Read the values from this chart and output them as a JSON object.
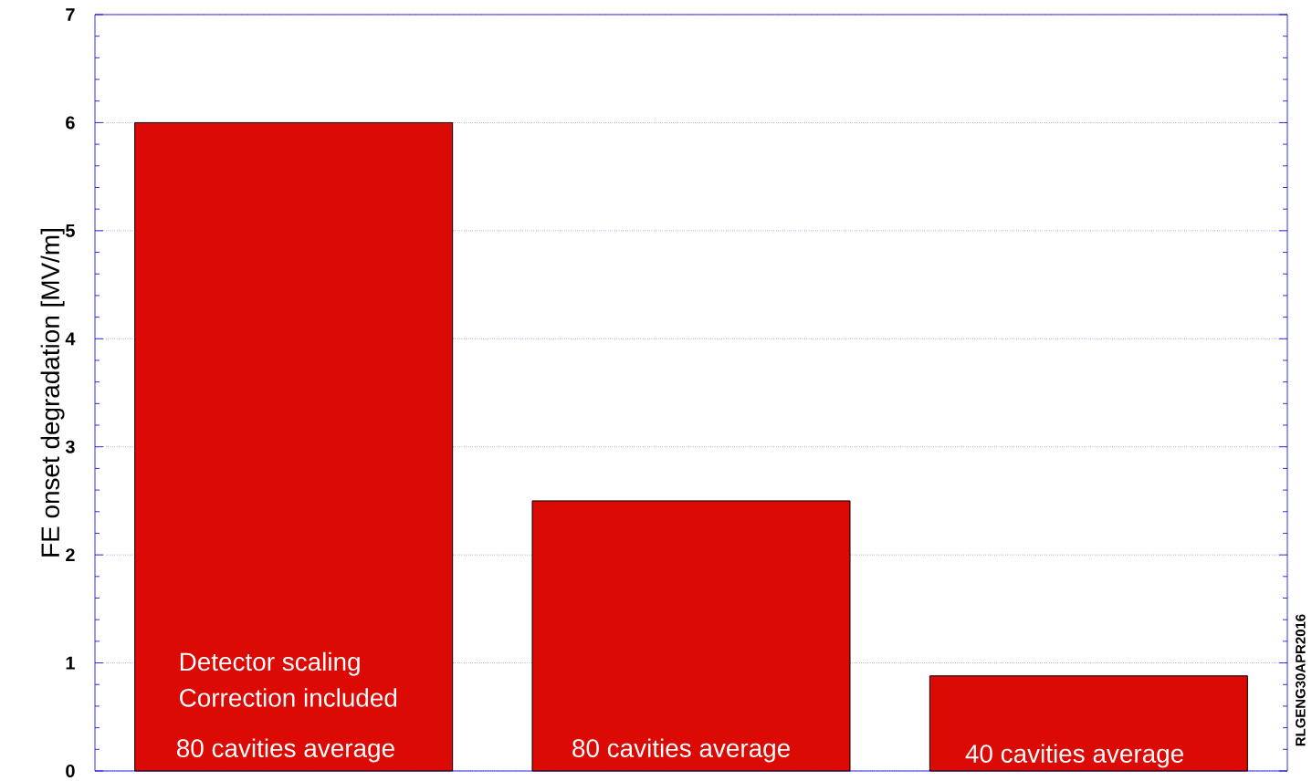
{
  "chart_data": {
    "type": "bar",
    "ylabel": "FE onset degradation [MV/m]",
    "categories": [
      null,
      null,
      null
    ],
    "values": [
      6,
      2.5,
      0.88
    ],
    "color": "#dc0a05",
    "ylim": [
      0,
      7
    ],
    "yticks": [
      0,
      1,
      2,
      3,
      4,
      5,
      6,
      7
    ],
    "grid": "y",
    "annotations": [
      "Detector scaling",
      "Correction included",
      "80 cavities average",
      "80 cavities average",
      "40 cavities average",
      "RLGENG30APR2016"
    ]
  }
}
